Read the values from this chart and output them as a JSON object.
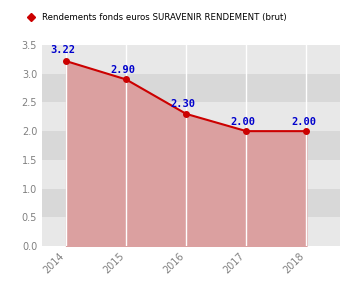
{
  "years": [
    2014,
    2015,
    2016,
    2017,
    2018
  ],
  "values": [
    3.22,
    2.9,
    2.3,
    2.0,
    2.0
  ],
  "labels": [
    "3.22",
    "2.90",
    "2.30",
    "2.00",
    "2.00"
  ],
  "line_color": "#cc0000",
  "fill_color": "#dba0a0",
  "fill_alpha": 1.0,
  "marker_color": "#cc0000",
  "marker_face": "#cc0000",
  "marker_style": "o",
  "marker_size": 4,
  "label_color": "#0000cc",
  "label_fontsize": 7.5,
  "label_fontweight": "bold",
  "legend_label": "Rendements fonds euros SURAVENIR RENDEMENT (brut)",
  "legend_marker_color": "#cc0000",
  "ylim": [
    0.0,
    3.5
  ],
  "yticks": [
    0.0,
    0.5,
    1.0,
    1.5,
    2.0,
    2.5,
    3.0,
    3.5
  ],
  "background_color": "#ffffff",
  "plot_bg_color_light": "#e8e8e8",
  "plot_bg_color_dark": "#d8d8d8",
  "grid_color": "#ffffff",
  "tick_color": "#808080",
  "tick_fontsize": 7,
  "figsize": [
    3.5,
    3.0
  ],
  "dpi": 100
}
